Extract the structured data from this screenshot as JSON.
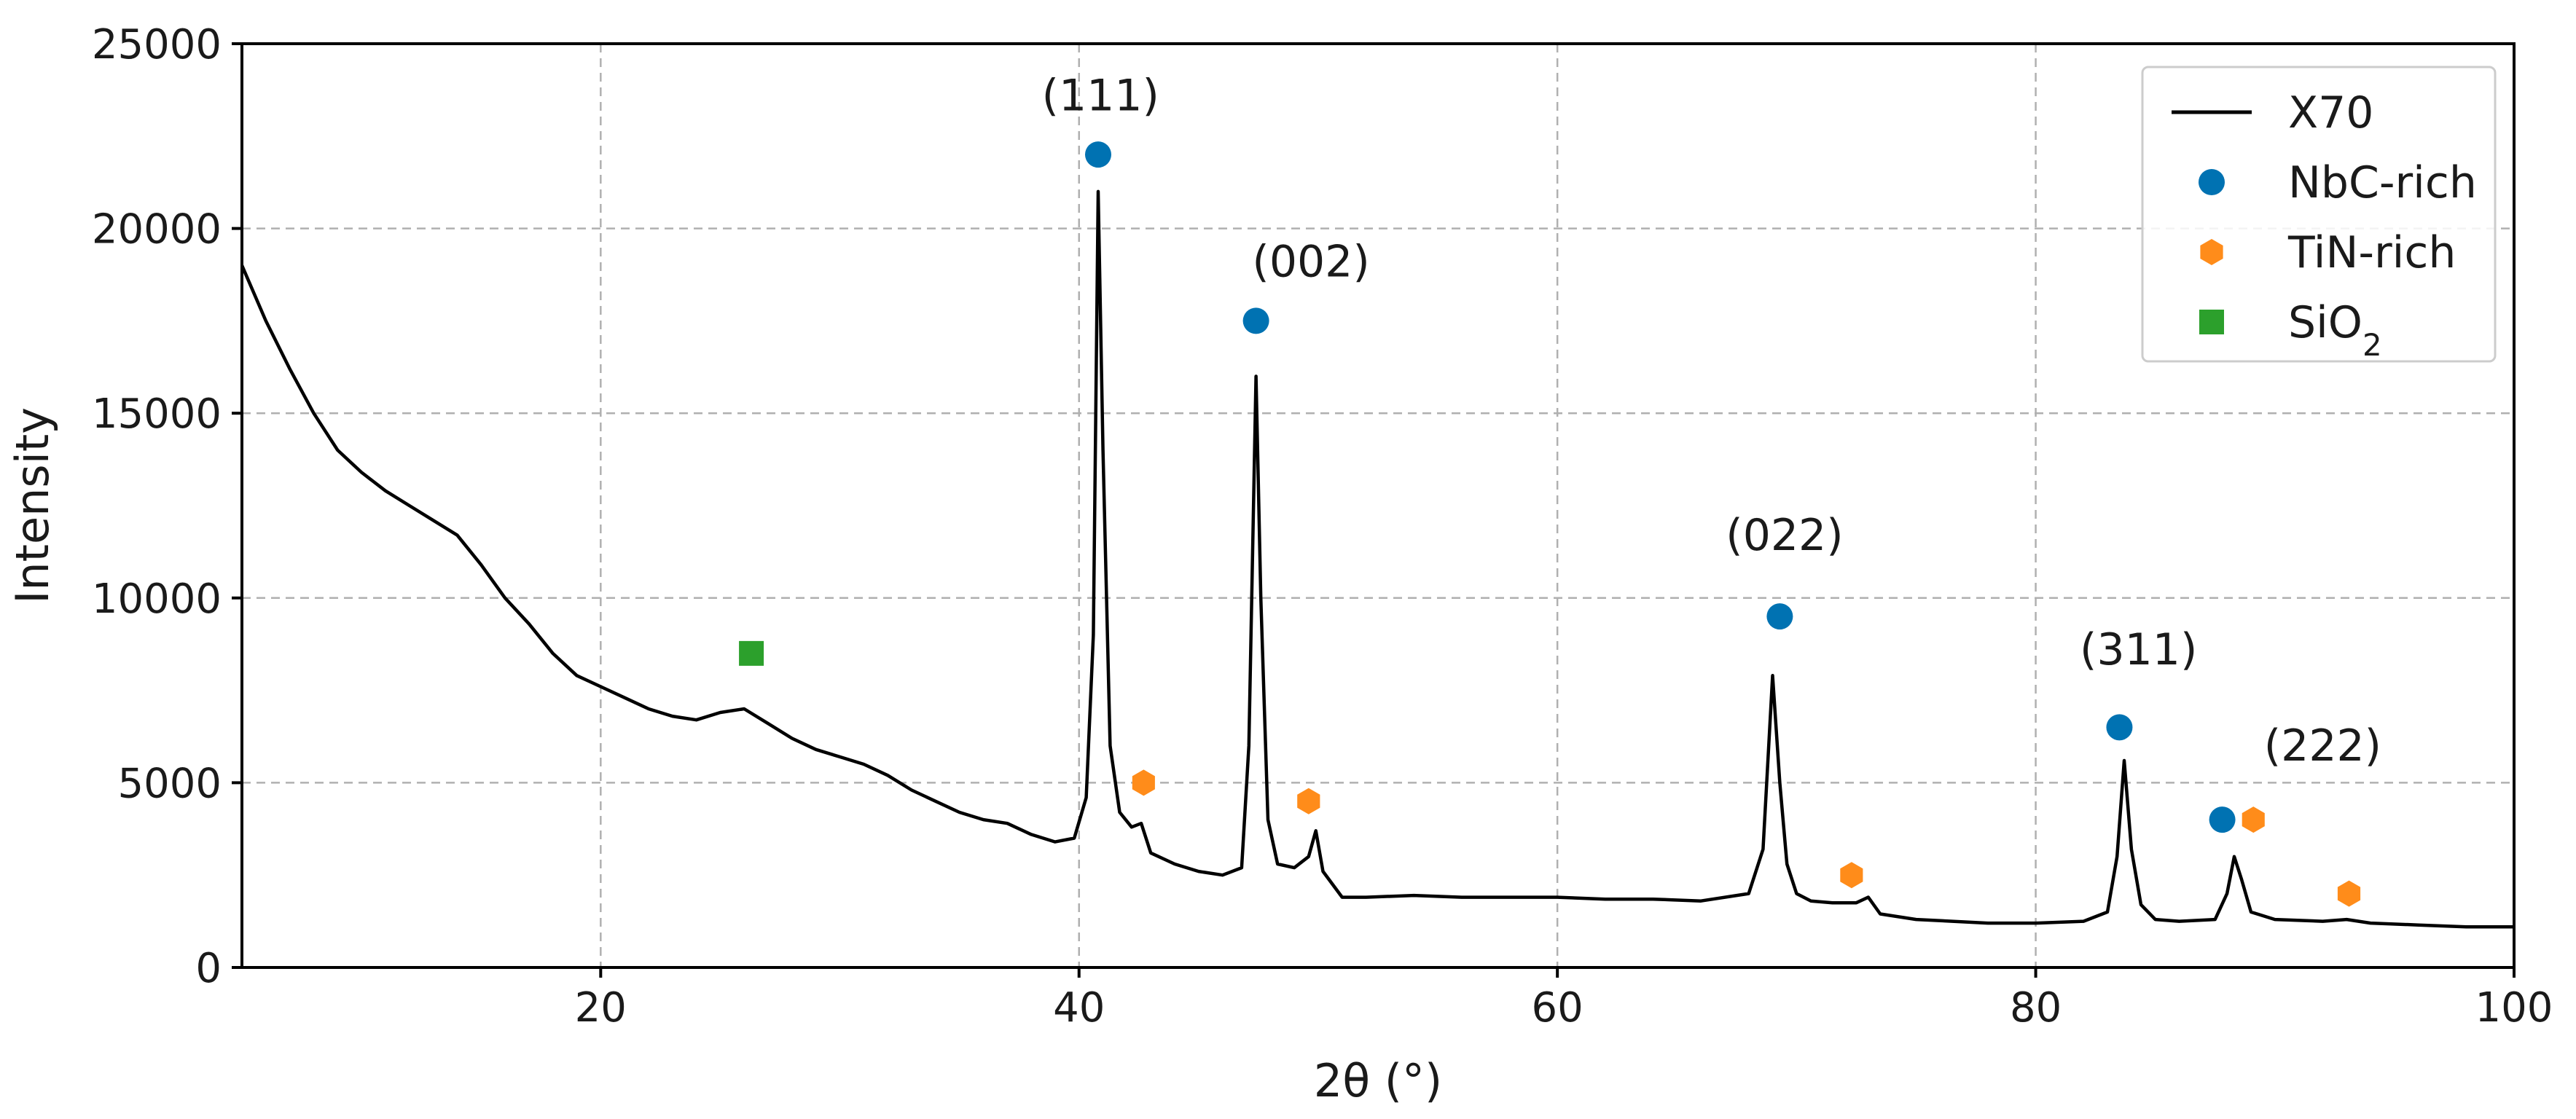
{
  "chart_data": {
    "type": "line",
    "xlabel": "2θ (°)",
    "ylabel": "Intensity",
    "xlim": [
      5,
      100
    ],
    "ylim": [
      0,
      25000
    ],
    "x_ticks": [
      20,
      40,
      60,
      80,
      100
    ],
    "y_ticks": [
      0,
      5000,
      10000,
      15000,
      20000,
      25000
    ],
    "x_tick_labels": [
      "20",
      "40",
      "60",
      "80",
      "100"
    ],
    "y_tick_labels": [
      "0",
      "5000",
      "10000",
      "15000",
      "20000",
      "25000"
    ],
    "grid": true,
    "legend_position": "top-right",
    "series": [
      {
        "name": "X70",
        "kind": "line",
        "color": "#000000",
        "x": [
          5,
          6,
          7,
          8,
          9,
          10,
          11,
          12,
          13,
          14,
          15,
          16,
          17,
          18,
          19,
          20,
          21,
          22,
          23,
          24,
          25,
          26,
          27,
          28,
          29,
          30,
          31,
          32,
          33,
          34,
          35,
          36,
          37,
          38,
          39,
          39.8,
          40.3,
          40.6,
          40.8,
          41.0,
          41.3,
          41.7,
          42.2,
          42.6,
          43.0,
          44,
          45,
          46,
          46.8,
          47.1,
          47.4,
          47.6,
          47.9,
          48.3,
          49.0,
          49.6,
          49.9,
          50.2,
          51,
          52,
          54,
          56,
          58,
          60,
          62,
          64,
          66,
          68,
          68.6,
          69.0,
          69.3,
          69.6,
          70.0,
          70.6,
          71.5,
          72.5,
          73.0,
          73.5,
          75,
          78,
          80,
          82,
          83.0,
          83.4,
          83.7,
          84.0,
          84.4,
          85.0,
          86,
          87.5,
          88.0,
          88.3,
          88.6,
          89.0,
          90,
          92,
          93,
          94,
          96,
          98,
          100
        ],
        "y": [
          19000,
          17500,
          16200,
          15000,
          14000,
          13400,
          12900,
          12500,
          12100,
          11700,
          10900,
          10000,
          9300,
          8500,
          7900,
          7600,
          7300,
          7000,
          6800,
          6700,
          6900,
          7000,
          6600,
          6200,
          5900,
          5700,
          5500,
          5200,
          4800,
          4500,
          4200,
          4000,
          3900,
          3600,
          3400,
          3500,
          4600,
          9000,
          21000,
          14000,
          6000,
          4200,
          3800,
          3900,
          3100,
          2800,
          2600,
          2500,
          2700,
          6000,
          16000,
          10000,
          4000,
          2800,
          2700,
          3000,
          3700,
          2600,
          1900,
          1900,
          1950,
          1900,
          1900,
          1900,
          1850,
          1850,
          1800,
          2000,
          3200,
          7900,
          5000,
          2800,
          2000,
          1800,
          1750,
          1750,
          1900,
          1450,
          1300,
          1200,
          1200,
          1250,
          1500,
          3000,
          5600,
          3200,
          1700,
          1300,
          1250,
          1300,
          2000,
          3000,
          2400,
          1500,
          1300,
          1250,
          1300,
          1200,
          1150,
          1100,
          1100
        ]
      },
      {
        "name": "NbC-rich",
        "kind": "marker",
        "marker": "circle",
        "color": "#0072b2",
        "x": [
          40.8,
          47.4,
          69.3,
          83.5,
          87.8
        ],
        "y": [
          22000,
          17500,
          9500,
          6500,
          4000
        ]
      },
      {
        "name": "TiN-rich",
        "kind": "marker",
        "marker": "hexagon",
        "color": "#ff8c1a",
        "x": [
          42.7,
          49.6,
          72.3,
          89.1,
          93.1
        ],
        "y": [
          5000,
          4500,
          2500,
          4000,
          2000
        ]
      },
      {
        "name": "SiO",
        "name_subscript": "2",
        "kind": "marker",
        "marker": "square",
        "color": "#2ca02c",
        "x": [
          26.3
        ],
        "y": [
          8500
        ]
      }
    ],
    "annotations": [
      {
        "text": "(111)",
        "x": 40.9,
        "y": 23200
      },
      {
        "text": "(002)",
        "x": 49.7,
        "y": 18700
      },
      {
        "text": "(022)",
        "x": 69.5,
        "y": 11300
      },
      {
        "text": "(311)",
        "x": 84.3,
        "y": 8200
      },
      {
        "text": "(222)",
        "x": 92.0,
        "y": 5600
      }
    ]
  }
}
